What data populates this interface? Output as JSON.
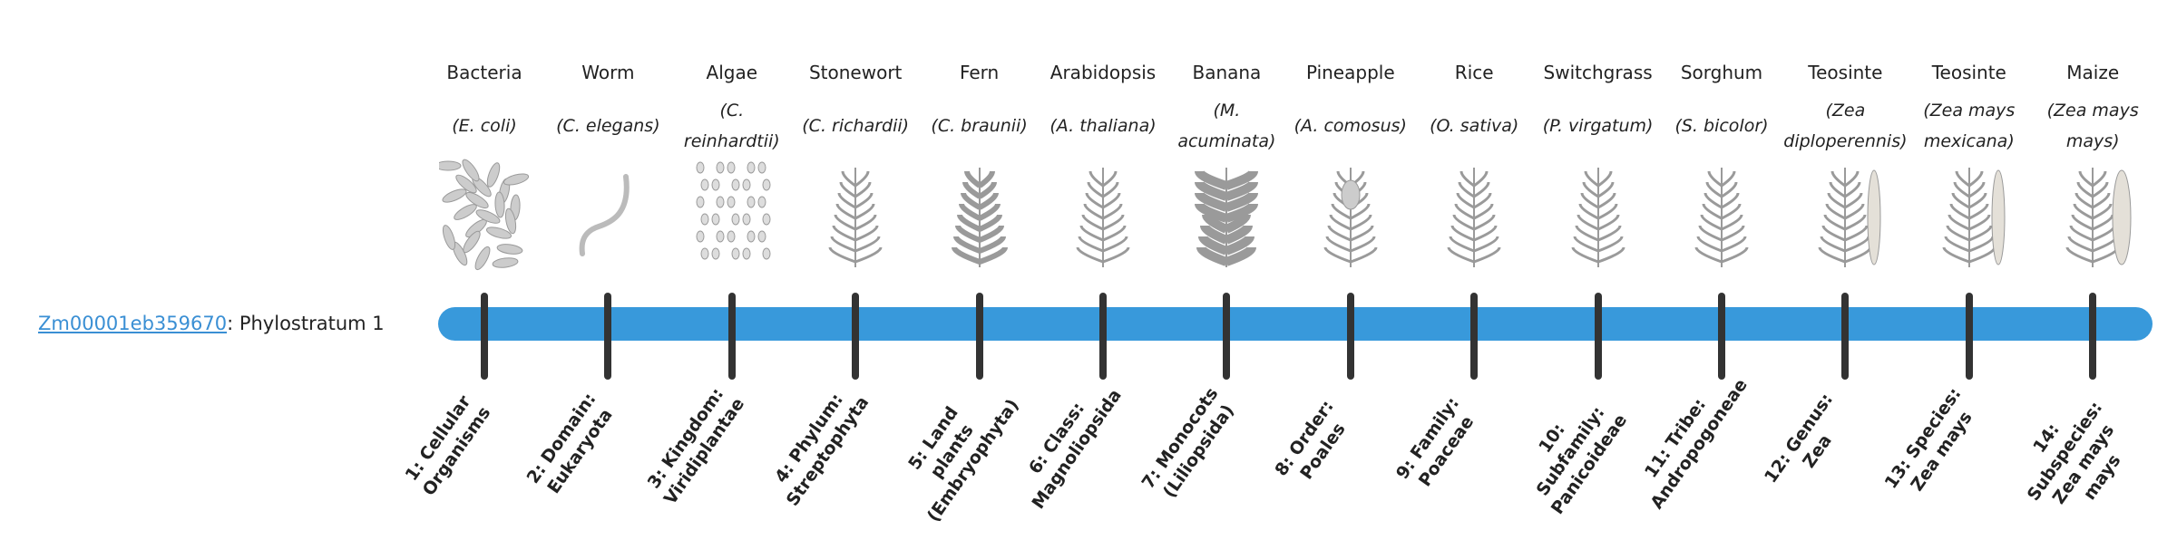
{
  "gene": {
    "id": "Zm00001eb359670",
    "separator": ": ",
    "text": "Phylostratum 1"
  },
  "colors": {
    "bar": "#3899db",
    "tick": "#333333",
    "link": "#3a8fd4",
    "illustration": "#9a9a9a"
  },
  "organisms": [
    {
      "common": "Bacteria",
      "scientific": "(E. coli)",
      "stratum": "1: Cellular Organisms",
      "icon": "bacteria-icon"
    },
    {
      "common": "Worm",
      "scientific": "(C. elegans)",
      "stratum": "2: Domain: Eukaryota",
      "icon": "worm-icon"
    },
    {
      "common": "Algae",
      "scientific": "(C. reinhardtii)",
      "stratum": "3: Kingdom: Viridiplantae",
      "icon": "algae-icon"
    },
    {
      "common": "Stonewort",
      "scientific": "(C. richardii)",
      "stratum": "4: Phylum: Streptophyta",
      "icon": "stonewort-icon"
    },
    {
      "common": "Fern",
      "scientific": "(C. braunii)",
      "stratum": "5: Land plants (Embryophyta)",
      "icon": "fern-icon"
    },
    {
      "common": "Arabidopsis",
      "scientific": "(A. thaliana)",
      "stratum": "6: Class: Magnoliopsida",
      "icon": "arabidopsis-icon"
    },
    {
      "common": "Banana",
      "scientific": "(M. acuminata)",
      "stratum": "7: Monocots (Liliopsida)",
      "icon": "banana-icon"
    },
    {
      "common": "Pineapple",
      "scientific": "(A. comosus)",
      "stratum": "8: Order: Poales",
      "icon": "pineapple-icon"
    },
    {
      "common": "Rice",
      "scientific": "(O. sativa)",
      "stratum": "9: Family: Poaceae",
      "icon": "rice-icon"
    },
    {
      "common": "Switchgrass",
      "scientific": "(P. virgatum)",
      "stratum": "10: Subfamily: Panicoideae",
      "icon": "switchgrass-icon"
    },
    {
      "common": "Sorghum",
      "scientific": "(S. bicolor)",
      "stratum": "11: Tribe: Andropogoneae",
      "icon": "sorghum-icon"
    },
    {
      "common": "Teosinte",
      "scientific": "(Zea diploperennis)",
      "stratum": "12: Genus: Zea",
      "icon": "teosinte-icon"
    },
    {
      "common": "Teosinte",
      "scientific": "(Zea mays mexicana)",
      "stratum": "13: Species: Zea mays",
      "icon": "teosinte-icon"
    },
    {
      "common": "Maize",
      "scientific": "(Zea mays mays)",
      "stratum": "14: Subspecies: Zea mays mays",
      "icon": "maize-icon"
    }
  ]
}
